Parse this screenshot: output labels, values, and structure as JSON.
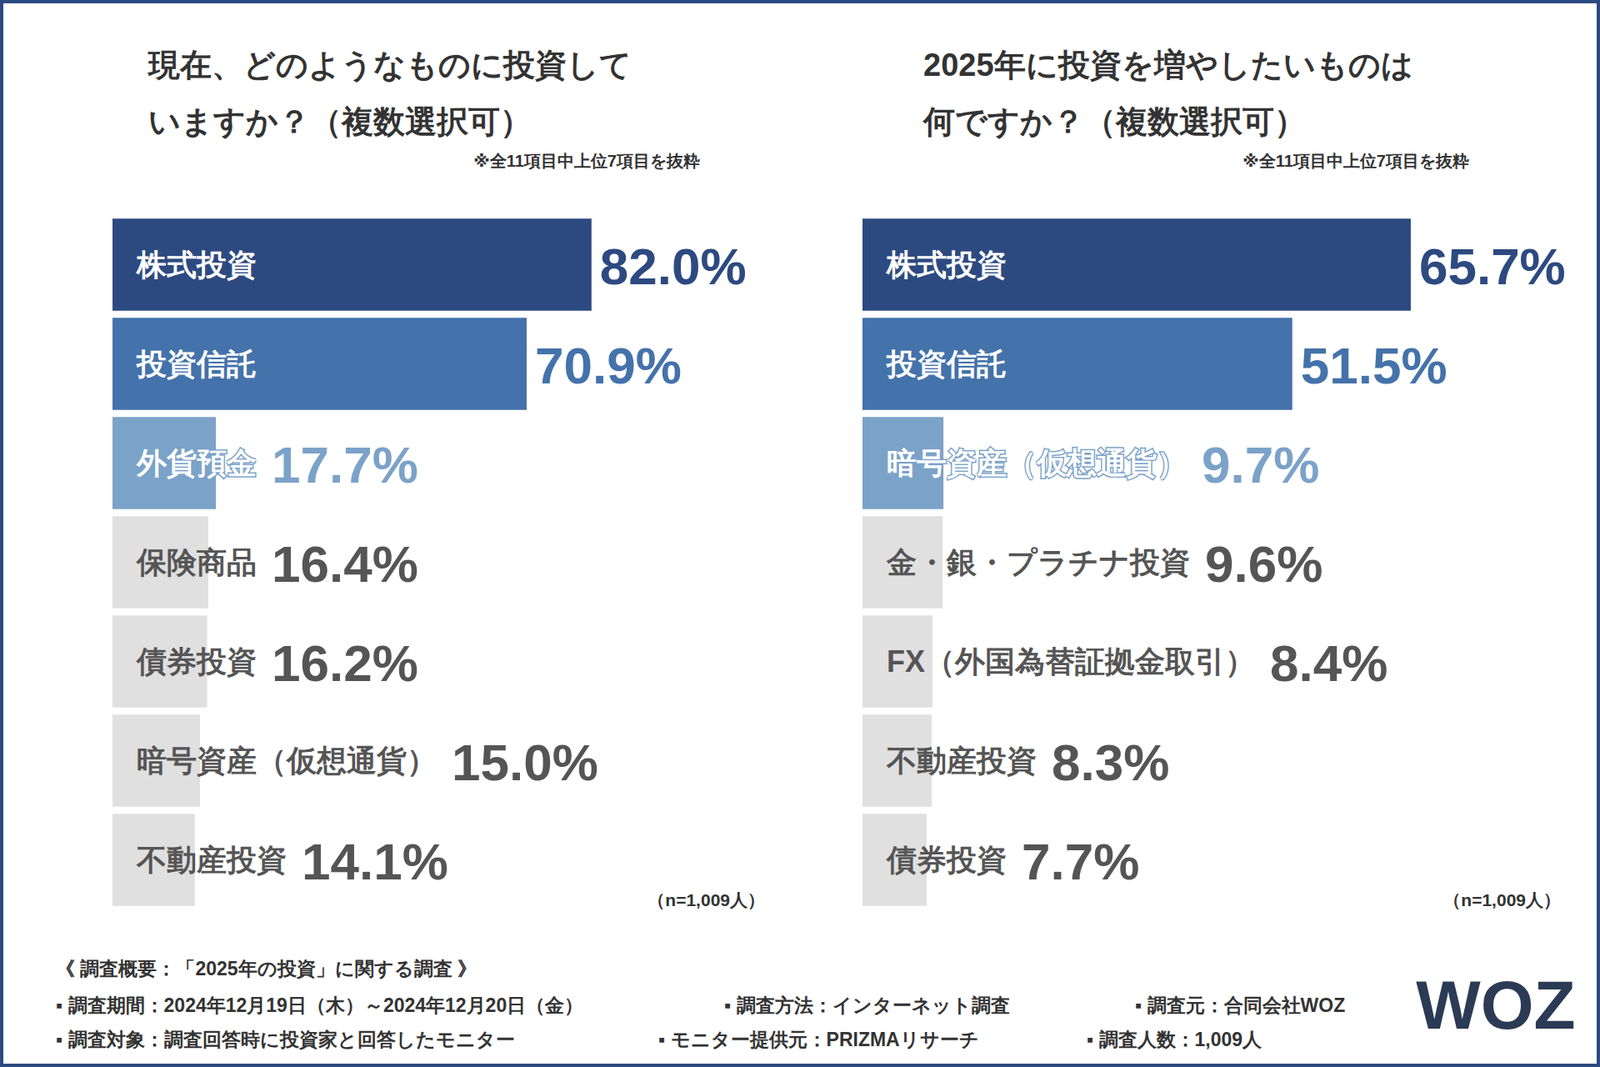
{
  "chart_data": [
    {
      "type": "bar",
      "title": "現在、どのようなものに投資して\nいますか？（複数選択可）",
      "subtitle": "※全11項目中上位7項目を抜粋",
      "annotation": "（n=1,009人）",
      "orientation": "horizontal",
      "categories": [
        "株式投資",
        "投資信託",
        "外貨預金",
        "保険商品",
        "債券投資",
        "暗号資産（仮想通貨）",
        "不動産投資"
      ],
      "values": [
        82.0,
        70.9,
        17.7,
        16.4,
        16.2,
        15.0,
        14.1
      ],
      "value_labels": [
        "82.0%",
        "70.9%",
        "17.7%",
        "16.4%",
        "16.2%",
        "15.0%",
        "14.1%"
      ],
      "colors": [
        "#2d4a80",
        "#4472aa",
        "#7ba2c8",
        "#e0e0e0",
        "#e0e0e0",
        "#e0e0e0",
        "#e0e0e0"
      ],
      "xlim": [
        0,
        100
      ],
      "data_labels": true,
      "tick_labels": false,
      "grid": false
    },
    {
      "type": "bar",
      "title": "2025年に投資を増やしたいものは\n何ですか？（複数選択可）",
      "subtitle": "※全11項目中上位7項目を抜粋",
      "annotation": "（n=1,009人）",
      "orientation": "horizontal",
      "categories": [
        "株式投資",
        "投資信託",
        "暗号資産（仮想通貨）",
        "金・銀・プラチナ投資",
        "FX（外国為替証拠金取引）",
        "不動産投資",
        "債券投資"
      ],
      "values": [
        65.7,
        51.5,
        9.7,
        9.6,
        8.4,
        8.3,
        7.7
      ],
      "value_labels": [
        "65.7%",
        "51.5%",
        "9.7%",
        "9.6%",
        "8.4%",
        "8.3%",
        "7.7%"
      ],
      "colors": [
        "#2d4a80",
        "#4472aa",
        "#7ba2c8",
        "#e0e0e0",
        "#e0e0e0",
        "#e0e0e0",
        "#e0e0e0"
      ],
      "xlim": [
        0,
        70
      ],
      "data_labels": true,
      "tick_labels": false,
      "grid": false
    }
  ],
  "survey": {
    "title": "《 調査概要：「2025年の投資」に関する調査 》",
    "items": [
      "▪ 調査期間：2024年12月19日（木）～2024年12月20日（金）",
      "▪ 調査方法：インターネット調査",
      "▪ 調査元：合同会社WOZ",
      "▪ 調査対象：調査回答時に投資家と回答したモニター",
      "▪ モニター提供元：PRIZMAリサーチ",
      "▪ 調査人数：1,009人"
    ],
    "logo": "WOZ"
  }
}
